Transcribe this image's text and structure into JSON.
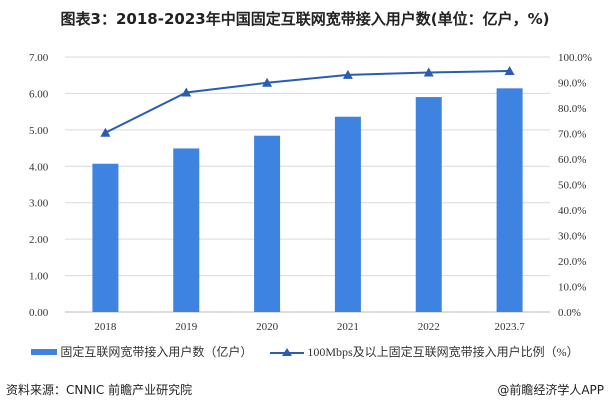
{
  "chart_data": {
    "type": "bar+line",
    "title": "图表3：2018-2023年中国固定互联网宽带接入用户数(单位：亿户，%)",
    "categories": [
      "2018",
      "2019",
      "2020",
      "2021",
      "2022",
      "2023.7"
    ],
    "series": [
      {
        "name": "固定互联网宽带接入用户数（亿户）",
        "type": "bar",
        "axis": "left",
        "color": "#3f83e0",
        "values": [
          4.07,
          4.49,
          4.84,
          5.36,
          5.9,
          6.14
        ]
      },
      {
        "name": "100Mbps及以上固定互联网宽带接入用户比例（%）",
        "type": "line",
        "axis": "right",
        "color": "#2a5db0",
        "marker": "triangle",
        "values": [
          70.3,
          86.1,
          89.9,
          93.0,
          93.9,
          94.5
        ]
      }
    ],
    "left_axis": {
      "ylim": [
        0,
        7
      ],
      "ticks": [
        "0.00",
        "1.00",
        "2.00",
        "3.00",
        "4.00",
        "5.00",
        "6.00",
        "7.00"
      ]
    },
    "right_axis": {
      "ylim": [
        0,
        100
      ],
      "ticks": [
        "0.0%",
        "10.0%",
        "20.0%",
        "30.0%",
        "40.0%",
        "50.0%",
        "60.0%",
        "70.0%",
        "80.0%",
        "90.0%",
        "100.0%"
      ]
    },
    "grid": true,
    "legend": "bottom"
  },
  "footer": {
    "source": "资料来源：CNNIC 前瞻产业研究院",
    "brand": "@前瞻经济学人APP"
  }
}
